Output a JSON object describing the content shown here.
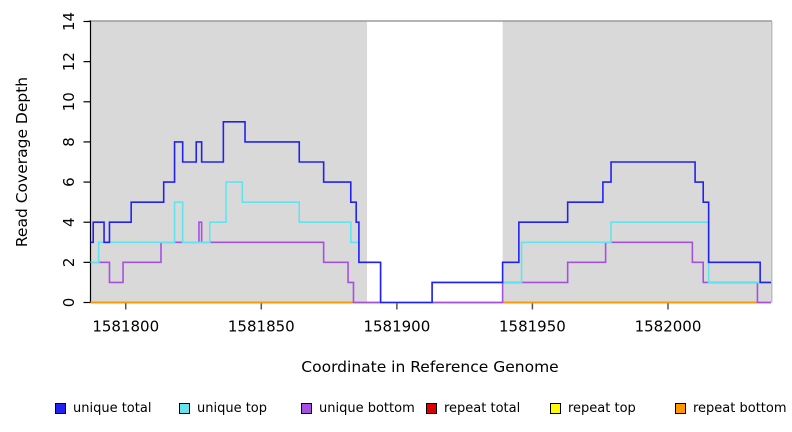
{
  "chart_data": {
    "type": "line",
    "subtype": "step-after-coverage",
    "title": "",
    "xlabel": "Coordinate in Reference Genome",
    "ylabel": "Read Coverage Depth",
    "xlim": [
      1581787,
      1582038
    ],
    "ylim": [
      0,
      14
    ],
    "x_ticks": [
      1581800,
      1581850,
      1581900,
      1581950,
      1582000
    ],
    "y_ticks": [
      0,
      2,
      4,
      6,
      8,
      10,
      12,
      14
    ],
    "grid": "off",
    "plot_background": "#d9d9d9",
    "gap_background": "#ffffff",
    "top_border_color": "#9b9b9b",
    "shaded_regions": [
      {
        "name": "left-coverage-region",
        "x0": 1581787,
        "x1": 1581889
      },
      {
        "name": "right-coverage-region",
        "x0": 1581939,
        "x1": 1582038
      }
    ],
    "series": [
      {
        "name": "repeat total",
        "color": "#dd0000",
        "points": [
          [
            1581787,
            0
          ]
        ]
      },
      {
        "name": "repeat top",
        "color": "#fdfd00",
        "points": [
          [
            1581787,
            0
          ]
        ]
      },
      {
        "name": "repeat bottom",
        "color": "#ff9800",
        "points": [
          [
            1581787,
            0
          ]
        ]
      },
      {
        "name": "unique bottom",
        "color": "#a650e2",
        "points": [
          [
            1581787,
            2
          ],
          [
            1581794,
            1
          ],
          [
            1581799,
            2
          ],
          [
            1581813,
            3
          ],
          [
            1581827,
            4
          ],
          [
            1581828,
            3
          ],
          [
            1581873,
            2
          ],
          [
            1581882,
            1
          ],
          [
            1581884,
            0
          ],
          [
            1581939,
            1
          ],
          [
            1581963,
            2
          ],
          [
            1581977,
            3
          ],
          [
            1582009,
            2
          ],
          [
            1582013,
            1
          ],
          [
            1582033,
            0
          ]
        ]
      },
      {
        "name": "unique top",
        "color": "#63e3ee",
        "points": [
          [
            1581787,
            2
          ],
          [
            1581790,
            3
          ],
          [
            1581818,
            5
          ],
          [
            1581821,
            3
          ],
          [
            1581831,
            4
          ],
          [
            1581837,
            6
          ],
          [
            1581843,
            5
          ],
          [
            1581864,
            4
          ],
          [
            1581883,
            3
          ],
          [
            1581886,
            2
          ],
          [
            1581894,
            0
          ],
          [
            1581913,
            1
          ],
          [
            1581946,
            3
          ],
          [
            1581979,
            4
          ],
          [
            1582015,
            1
          ]
        ]
      },
      {
        "name": "unique total",
        "color": "#2222f0",
        "points": [
          [
            1581787,
            3
          ],
          [
            1581788,
            4
          ],
          [
            1581792,
            3
          ],
          [
            1581794,
            4
          ],
          [
            1581802,
            5
          ],
          [
            1581814,
            6
          ],
          [
            1581818,
            8
          ],
          [
            1581821,
            7
          ],
          [
            1581826,
            8
          ],
          [
            1581828,
            7
          ],
          [
            1581836,
            9
          ],
          [
            1581844,
            8
          ],
          [
            1581864,
            7
          ],
          [
            1581873,
            6
          ],
          [
            1581883,
            5
          ],
          [
            1581885,
            4
          ],
          [
            1581886,
            2
          ],
          [
            1581894,
            0
          ],
          [
            1581913,
            1
          ],
          [
            1581939,
            2
          ],
          [
            1581945,
            4
          ],
          [
            1581963,
            5
          ],
          [
            1581976,
            6
          ],
          [
            1581979,
            7
          ],
          [
            1582010,
            6
          ],
          [
            1582013,
            5
          ],
          [
            1582015,
            2
          ],
          [
            1582034,
            1
          ]
        ]
      }
    ],
    "legend": {
      "position": "bottom",
      "entries": [
        {
          "label": "unique total",
          "color": "#2222f0"
        },
        {
          "label": "unique top",
          "color": "#63e3ee"
        },
        {
          "label": "unique bottom",
          "color": "#a650e2"
        },
        {
          "label": "repeat total",
          "color": "#dd0000"
        },
        {
          "label": "repeat top",
          "color": "#fdfd00"
        },
        {
          "label": "repeat bottom",
          "color": "#ff9800"
        }
      ]
    }
  }
}
